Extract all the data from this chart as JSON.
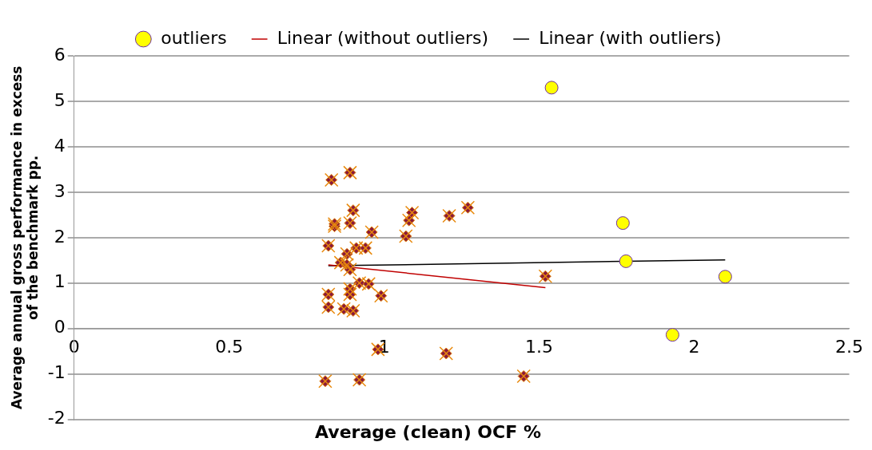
{
  "chart_data": {
    "type": "scatter",
    "xlabel": "Average (clean) OCF %",
    "ylabel": "Average annual gross performance in excess of the benchmark pp.",
    "xlim": [
      0,
      2.5
    ],
    "xticks": [
      0,
      0.5,
      1,
      1.5,
      2,
      2.5
    ],
    "ylim": [
      -2,
      6
    ],
    "yticks": [
      -2,
      -1,
      0,
      1,
      2,
      3,
      4,
      5,
      6
    ],
    "grid": "y",
    "legend": "top",
    "series": [
      {
        "type": "scatter",
        "marker": "diamond",
        "color": "#8b1a3a",
        "x": [
          0.83,
          0.89,
          0.84,
          0.84,
          0.9,
          0.89,
          0.96,
          1.07,
          1.08,
          1.09,
          1.21,
          1.27,
          0.82,
          0.86,
          0.88,
          0.91,
          0.94,
          0.86,
          0.88,
          0.89,
          0.9,
          0.92,
          0.95,
          0.99,
          0.82,
          0.82,
          0.87,
          0.9,
          0.89,
          0.89,
          1.52,
          0.98,
          1.2,
          1.45,
          0.81,
          0.92
        ],
        "values": [
          3.27,
          3.43,
          2.25,
          2.3,
          2.6,
          2.32,
          2.12,
          2.03,
          2.38,
          2.55,
          2.48,
          2.66,
          1.82,
          null,
          1.64,
          1.77,
          1.77,
          1.45,
          1.4,
          1.3,
          null,
          1.0,
          0.98,
          0.72,
          0.75,
          0.47,
          0.43,
          0.39,
          0.75,
          0.87,
          1.15,
          -0.46,
          -0.55,
          -1.05,
          -1.16,
          -1.13
        ]
      },
      {
        "type": "scatter",
        "name": "outliers",
        "marker": "circle",
        "color": "#ffff00",
        "x": [
          1.54,
          1.77,
          1.78,
          2.1,
          1.93
        ],
        "values": [
          5.3,
          2.32,
          1.48,
          1.14,
          -0.14
        ]
      },
      {
        "type": "line",
        "name": "Linear (without outliers)",
        "marker": "none",
        "color": "#c00000",
        "x": [
          0.82,
          1.52
        ],
        "values": [
          1.4,
          0.9
        ]
      },
      {
        "type": "line",
        "name": "Linear (with outliers)",
        "marker": "none",
        "color": "#000000",
        "x": [
          0.82,
          2.1
        ],
        "values": [
          1.38,
          1.51
        ]
      }
    ]
  }
}
